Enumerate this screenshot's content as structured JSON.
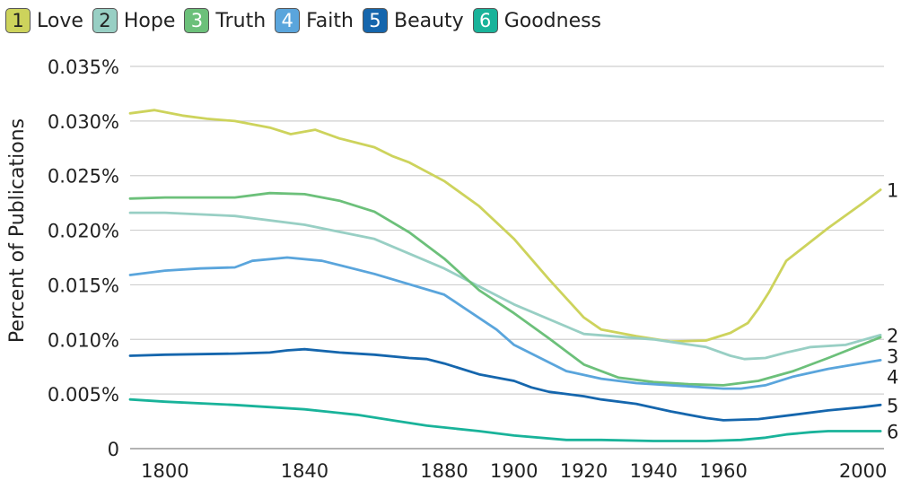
{
  "chart_data": {
    "type": "line",
    "title": "",
    "xlabel": "",
    "ylabel": "Percent of Publications",
    "xlim": [
      1790,
      2006
    ],
    "ylim": [
      0,
      0.035
    ],
    "grid": true,
    "legend_position": "top",
    "x_ticks": [
      "1800",
      "1840",
      "1880",
      "1900",
      "1920",
      "1940",
      "1960",
      "2000"
    ],
    "x_tick_values": [
      1800,
      1840,
      1880,
      1900,
      1920,
      1940,
      1960,
      2000
    ],
    "y_ticks": [
      "0",
      "0.005%",
      "0.010%",
      "0.015%",
      "0.020%",
      "0.025%",
      "0.030%",
      "0.035%"
    ],
    "y_tick_values": [
      0,
      0.005,
      0.01,
      0.015,
      0.02,
      0.025,
      0.03,
      0.035
    ],
    "series": [
      {
        "number": "1",
        "name": "Love",
        "color": "#cdd35c",
        "text_color": "#222222",
        "x": [
          1790,
          1797,
          1805,
          1812,
          1820,
          1830,
          1836,
          1843,
          1850,
          1860,
          1865,
          1870,
          1880,
          1890,
          1900,
          1910,
          1920,
          1925,
          1935,
          1945,
          1955,
          1962,
          1967,
          1970,
          1973,
          1978,
          1982,
          1990,
          2000,
          2005
        ],
        "y": [
          0.0307,
          0.031,
          0.0305,
          0.0302,
          0.03,
          0.0294,
          0.0288,
          0.0292,
          0.0284,
          0.0276,
          0.0268,
          0.0262,
          0.0245,
          0.0222,
          0.0192,
          0.0155,
          0.012,
          0.0109,
          0.0103,
          0.0098,
          0.0099,
          0.0106,
          0.0115,
          0.0128,
          0.0143,
          0.0172,
          0.0182,
          0.0202,
          0.0225,
          0.0237
        ]
      },
      {
        "number": "2",
        "name": "Hope",
        "color": "#98cfc4",
        "text_color": "#222222",
        "x": [
          1790,
          1800,
          1820,
          1840,
          1860,
          1880,
          1900,
          1920,
          1940,
          1955,
          1962,
          1966,
          1972,
          1978,
          1985,
          1995,
          2005
        ],
        "y": [
          0.0216,
          0.0216,
          0.0213,
          0.0205,
          0.0192,
          0.0165,
          0.0132,
          0.0105,
          0.01,
          0.0093,
          0.0085,
          0.0082,
          0.0083,
          0.0088,
          0.0093,
          0.0095,
          0.0104
        ]
      },
      {
        "number": "3",
        "name": "Truth",
        "color": "#6cc07a",
        "text_color": "#ffffff",
        "x": [
          1790,
          1800,
          1820,
          1830,
          1840,
          1850,
          1860,
          1870,
          1880,
          1890,
          1900,
          1910,
          1920,
          1930,
          1940,
          1950,
          1960,
          1970,
          1980,
          1990,
          2005
        ],
        "y": [
          0.0229,
          0.023,
          0.023,
          0.0234,
          0.0233,
          0.0227,
          0.0217,
          0.0198,
          0.0174,
          0.0145,
          0.0124,
          0.0101,
          0.0077,
          0.0065,
          0.0061,
          0.0059,
          0.0058,
          0.0062,
          0.0071,
          0.0083,
          0.0102
        ]
      },
      {
        "number": "4",
        "name": "Faith",
        "color": "#5aa5dc",
        "text_color": "#ffffff",
        "x": [
          1790,
          1800,
          1810,
          1820,
          1825,
          1835,
          1845,
          1860,
          1880,
          1895,
          1900,
          1915,
          1925,
          1935,
          1950,
          1960,
          1965,
          1972,
          1980,
          1990,
          2005
        ],
        "y": [
          0.0159,
          0.0163,
          0.0165,
          0.0166,
          0.0172,
          0.0175,
          0.0172,
          0.016,
          0.0141,
          0.0109,
          0.0095,
          0.0071,
          0.0064,
          0.006,
          0.0057,
          0.0055,
          0.0055,
          0.0058,
          0.0066,
          0.0073,
          0.0081
        ]
      },
      {
        "number": "5",
        "name": "Beauty",
        "color": "#1566ad",
        "text_color": "#ffffff",
        "x": [
          1790,
          1800,
          1820,
          1830,
          1835,
          1840,
          1850,
          1860,
          1870,
          1875,
          1880,
          1890,
          1900,
          1905,
          1910,
          1920,
          1925,
          1935,
          1945,
          1955,
          1960,
          1970,
          1980,
          1990,
          2000,
          2005
        ],
        "y": [
          0.0085,
          0.0086,
          0.0087,
          0.0088,
          0.009,
          0.0091,
          0.0088,
          0.0086,
          0.0083,
          0.0082,
          0.0078,
          0.0068,
          0.0062,
          0.0056,
          0.0052,
          0.0048,
          0.0045,
          0.0041,
          0.0034,
          0.0028,
          0.0026,
          0.0027,
          0.0031,
          0.0035,
          0.0038,
          0.004
        ]
      },
      {
        "number": "6",
        "name": "Goodness",
        "color": "#19b39a",
        "text_color": "#ffffff",
        "x": [
          1790,
          1800,
          1820,
          1840,
          1855,
          1865,
          1875,
          1890,
          1900,
          1915,
          1925,
          1940,
          1955,
          1965,
          1972,
          1978,
          1985,
          1990,
          2000,
          2005
        ],
        "y": [
          0.0045,
          0.0043,
          0.004,
          0.0036,
          0.0031,
          0.0026,
          0.0021,
          0.0016,
          0.0012,
          0.0008,
          0.0008,
          0.0007,
          0.0007,
          0.0008,
          0.001,
          0.0013,
          0.0015,
          0.0016,
          0.0016,
          0.0016
        ]
      }
    ]
  }
}
